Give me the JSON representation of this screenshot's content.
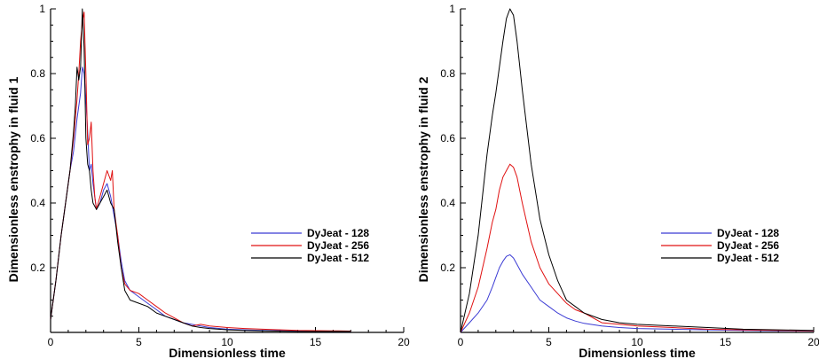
{
  "chart_data": [
    {
      "type": "line",
      "title": "",
      "xlabel": "Dimensionless time",
      "ylabel": "Dimensionless enstrophy in fluid 1",
      "xlim": [
        0,
        20
      ],
      "ylim": [
        0,
        1
      ],
      "xticks": [
        "0",
        "5",
        "10",
        "15",
        "20"
      ],
      "yticks": [
        "0.2",
        "0.4",
        "0.6",
        "0.8",
        "1"
      ],
      "legend_position": "center-right",
      "series": [
        {
          "name": "DyJeat - 128",
          "color": "#3b3bd4",
          "x": [
            0,
            0.3,
            0.6,
            0.9,
            1.1,
            1.3,
            1.5,
            1.7,
            1.8,
            1.9,
            2.0,
            2.1,
            2.2,
            2.3,
            2.4,
            2.6,
            2.8,
            3.0,
            3.2,
            3.4,
            3.6,
            3.8,
            4.0,
            4.2,
            4.5,
            5.0,
            5.5,
            6.0,
            6.5,
            7.0,
            7.5,
            8.0,
            8.5,
            9.0,
            10.0,
            11.0,
            12.0,
            14.0,
            16.0,
            17.0
          ],
          "y": [
            0.04,
            0.16,
            0.3,
            0.42,
            0.5,
            0.56,
            0.66,
            0.74,
            0.82,
            0.8,
            0.72,
            0.62,
            0.5,
            0.52,
            0.46,
            0.38,
            0.4,
            0.44,
            0.46,
            0.42,
            0.36,
            0.3,
            0.22,
            0.16,
            0.13,
            0.11,
            0.09,
            0.07,
            0.05,
            0.04,
            0.03,
            0.025,
            0.02,
            0.015,
            0.01,
            0.008,
            0.006,
            0.004,
            0.003,
            0.003
          ]
        },
        {
          "name": "DyJeat - 256",
          "color": "#e01010",
          "x": [
            0,
            0.3,
            0.6,
            0.9,
            1.1,
            1.3,
            1.5,
            1.6,
            1.7,
            1.8,
            1.9,
            2.0,
            2.1,
            2.2,
            2.3,
            2.4,
            2.5,
            2.6,
            2.8,
            3.0,
            3.2,
            3.4,
            3.5,
            3.6,
            3.8,
            4.0,
            4.2,
            4.5,
            5.0,
            5.5,
            6.0,
            6.5,
            7.0,
            7.5,
            8.0,
            8.5,
            9.0,
            10.0,
            11.0,
            12.0,
            14.0,
            16.0,
            17.0
          ],
          "y": [
            0.04,
            0.16,
            0.3,
            0.42,
            0.5,
            0.6,
            0.72,
            0.8,
            0.9,
            0.96,
            0.99,
            0.8,
            0.58,
            0.6,
            0.65,
            0.5,
            0.42,
            0.38,
            0.42,
            0.46,
            0.5,
            0.47,
            0.5,
            0.38,
            0.3,
            0.2,
            0.15,
            0.13,
            0.12,
            0.1,
            0.08,
            0.06,
            0.045,
            0.03,
            0.02,
            0.025,
            0.02,
            0.015,
            0.012,
            0.01,
            0.006,
            0.005,
            0.004
          ]
        },
        {
          "name": "DyJeat - 512",
          "color": "#000000",
          "x": [
            0,
            0.3,
            0.6,
            0.9,
            1.1,
            1.3,
            1.4,
            1.5,
            1.6,
            1.7,
            1.8,
            1.9,
            2.0,
            2.1,
            2.2,
            2.3,
            2.4,
            2.6,
            2.8,
            3.0,
            3.2,
            3.4,
            3.6,
            3.8,
            4.0,
            4.2,
            4.5,
            5.0,
            5.5,
            6.0,
            6.5,
            7.0,
            7.5,
            8.0,
            8.5,
            9.0,
            10.0,
            11.0,
            12.0,
            14.0,
            16.0,
            17.0
          ],
          "y": [
            0.04,
            0.16,
            0.3,
            0.42,
            0.5,
            0.62,
            0.7,
            0.82,
            0.78,
            0.82,
            1.0,
            0.88,
            0.6,
            0.52,
            0.5,
            0.44,
            0.4,
            0.38,
            0.4,
            0.42,
            0.44,
            0.4,
            0.38,
            0.28,
            0.2,
            0.13,
            0.1,
            0.09,
            0.08,
            0.06,
            0.05,
            0.04,
            0.03,
            0.02,
            0.015,
            0.012,
            0.008,
            0.006,
            0.005,
            0.003,
            0.003,
            0.003
          ]
        }
      ]
    },
    {
      "type": "line",
      "title": "",
      "xlabel": "Dimensionless time",
      "ylabel": "Dimensionless enstrophy in fluid 2",
      "xlim": [
        0,
        20
      ],
      "ylim": [
        0,
        1
      ],
      "xticks": [
        "0",
        "5",
        "10",
        "15",
        "20"
      ],
      "yticks": [
        "0.2",
        "0.4",
        "0.6",
        "0.8",
        "1"
      ],
      "legend_position": "center-right",
      "series": [
        {
          "name": "DyJeat - 128",
          "color": "#3b3bd4",
          "x": [
            0,
            0.5,
            1.0,
            1.5,
            1.8,
            2.0,
            2.2,
            2.4,
            2.6,
            2.8,
            3.0,
            3.2,
            3.5,
            4.0,
            4.5,
            5.0,
            5.5,
            6.0,
            6.5,
            7.0,
            8.0,
            9.0,
            10.0,
            12.0,
            14.0,
            16.0,
            18.0,
            20.0
          ],
          "y": [
            0.0,
            0.03,
            0.06,
            0.1,
            0.14,
            0.17,
            0.2,
            0.22,
            0.235,
            0.24,
            0.23,
            0.21,
            0.18,
            0.14,
            0.1,
            0.08,
            0.06,
            0.045,
            0.035,
            0.028,
            0.02,
            0.015,
            0.012,
            0.01,
            0.008,
            0.006,
            0.005,
            0.004
          ]
        },
        {
          "name": "DyJeat - 256",
          "color": "#e01010",
          "x": [
            0,
            0.5,
            1.0,
            1.5,
            1.8,
            2.0,
            2.2,
            2.4,
            2.6,
            2.8,
            3.0,
            3.2,
            3.5,
            4.0,
            4.5,
            5.0,
            5.5,
            6.0,
            6.5,
            7.0,
            8.0,
            9.0,
            10.0,
            12.0,
            14.0,
            16.0,
            18.0,
            20.0
          ],
          "y": [
            0.0,
            0.06,
            0.14,
            0.26,
            0.34,
            0.38,
            0.44,
            0.48,
            0.5,
            0.52,
            0.51,
            0.48,
            0.4,
            0.28,
            0.2,
            0.15,
            0.12,
            0.09,
            0.07,
            0.06,
            0.03,
            0.025,
            0.02,
            0.015,
            0.01,
            0.008,
            0.006,
            0.005
          ]
        },
        {
          "name": "DyJeat - 512",
          "color": "#000000",
          "x": [
            0,
            0.5,
            1.0,
            1.5,
            1.8,
            2.0,
            2.2,
            2.4,
            2.6,
            2.8,
            3.0,
            3.2,
            3.5,
            4.0,
            4.5,
            5.0,
            5.5,
            6.0,
            6.5,
            7.0,
            8.0,
            9.0,
            10.0,
            12.0,
            14.0,
            16.0,
            18.0,
            20.0
          ],
          "y": [
            0.0,
            0.12,
            0.3,
            0.55,
            0.67,
            0.74,
            0.82,
            0.9,
            0.97,
            1.0,
            0.98,
            0.9,
            0.75,
            0.52,
            0.35,
            0.24,
            0.16,
            0.1,
            0.08,
            0.06,
            0.04,
            0.03,
            0.025,
            0.02,
            0.015,
            0.01,
            0.008,
            0.006
          ]
        }
      ]
    }
  ]
}
